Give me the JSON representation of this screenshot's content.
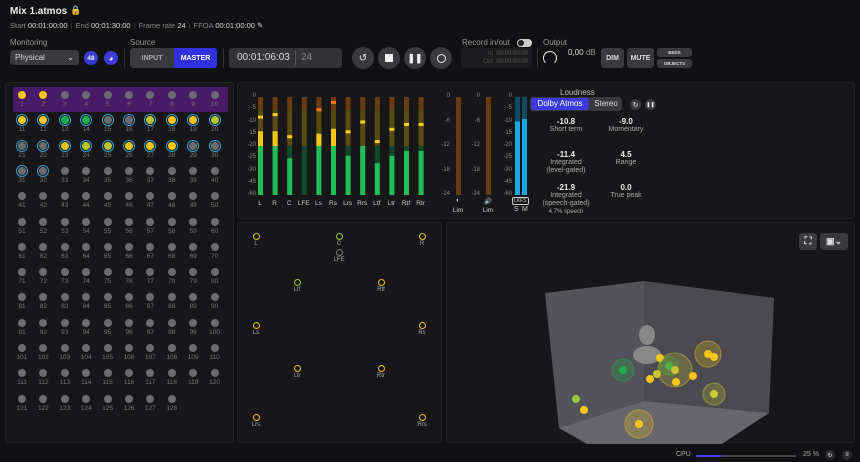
{
  "header": {
    "title": "Mix 1.atmos",
    "start_label": "Start",
    "start": "00:01:00:00",
    "end_label": "End",
    "end": "00:01:30:00",
    "frame_rate_label": "Frame rate",
    "frame_rate": "24",
    "ffoa_label": "FFOA",
    "ffoa": "00:01:00:00"
  },
  "toolbar": {
    "monitoring_label": "Monitoring",
    "monitoring_value": "Physical",
    "channels_badge": "48",
    "source_label": "Source",
    "source_input": "INPUT",
    "source_master": "MASTER",
    "source_selected": "MASTER",
    "timecode": "00:01:06:03",
    "fps": "24",
    "record_label": "Record in/out",
    "record_in_label": "In",
    "record_in": "00:00:00:00",
    "record_out_label": "Out",
    "record_out": "00:00:00:00",
    "output_label": "Output",
    "output_value": "0,00",
    "output_unit": "dB",
    "dim": "DIM",
    "mute": "MUTE",
    "beds": "BEDS",
    "objects": "OBJECTS"
  },
  "inputs": {
    "colors": {
      "yellow": "#f5c518",
      "yellowgreen": "#b8c430",
      "green": "#1fae4c",
      "gray": "#6c6c70",
      "ring": "#2aa3d4",
      "bed": "#4a1a6a"
    },
    "channels": [
      [
        "yellow",
        false
      ],
      [
        "yellow",
        false
      ],
      [
        "gray",
        false
      ],
      [
        "gray",
        false
      ],
      [
        "gray",
        false
      ],
      [
        "gray",
        false
      ],
      [
        "gray",
        false
      ],
      [
        "gray",
        false
      ],
      [
        "gray",
        false
      ],
      [
        "gray",
        false
      ],
      [
        "yellow",
        true
      ],
      [
        "yellow",
        true
      ],
      [
        "green",
        true
      ],
      [
        "green",
        true
      ],
      [
        "gray",
        true
      ],
      [
        "gray",
        true
      ],
      [
        "yellowgreen",
        true
      ],
      [
        "yellow",
        true
      ],
      [
        "yellow",
        true
      ],
      [
        "yellowgreen",
        true
      ],
      [
        "gray",
        true
      ],
      [
        "gray",
        true
      ],
      [
        "yellow",
        true
      ],
      [
        "yellowgreen",
        true
      ],
      [
        "yellowgreen",
        true
      ],
      [
        "yellow",
        true
      ],
      [
        "yellow",
        true
      ],
      [
        "yellow",
        true
      ],
      [
        "gray",
        true
      ],
      [
        "gray",
        true
      ],
      [
        "gray",
        true
      ],
      [
        "gray",
        true
      ]
    ],
    "total": 128
  },
  "meters": {
    "scale": [
      "0",
      "-5",
      "-10",
      "-15",
      "-20",
      "-25",
      "-30",
      "-45",
      "-60"
    ],
    "channels": [
      {
        "name": "L",
        "level": -14,
        "peak": -8
      },
      {
        "name": "R",
        "level": -14,
        "peak": -7
      },
      {
        "name": "C",
        "level": -25,
        "peak": -16
      },
      {
        "name": "LFE",
        "level": -60,
        "peak": null
      },
      {
        "name": "Ls",
        "level": -15,
        "peak": -5
      },
      {
        "name": "Rs",
        "level": -13,
        "peak": -2
      },
      {
        "name": "Lrs",
        "level": -24,
        "peak": -14
      },
      {
        "name": "Rrs",
        "level": -20,
        "peak": -10
      },
      {
        "name": "Ltf",
        "level": -27,
        "peak": -18
      },
      {
        "name": "Ltr",
        "level": -24,
        "peak": -13
      },
      {
        "name": "Rtf",
        "level": -22,
        "peak": -11
      },
      {
        "name": "Rtr",
        "level": -22,
        "peak": -11
      }
    ],
    "lim_scale": [
      "0",
      "-6",
      "-12",
      "-18",
      "-24"
    ],
    "lim1_label": "Lim",
    "lim2_label": "Lim",
    "lkfs_label": "LKFS",
    "lkfs_scale": [
      "0",
      "-5",
      "-10",
      "-15",
      "-20",
      "-25",
      "-30",
      "-45",
      "-60"
    ],
    "s_label": "S",
    "m_label": "M",
    "s_value": -10,
    "m_value": -9
  },
  "loudness": {
    "title": "Loudness",
    "tab_atmos": "Dolby Atmos",
    "tab_stereo": "Stereo",
    "items": [
      {
        "value": "-10.8",
        "name": "Short term"
      },
      {
        "value": "-9.0",
        "name": "Momentary"
      },
      {
        "value": "-11.4",
        "name": "Integrated\n(level-gated)"
      },
      {
        "value": "4.5",
        "name": "Range"
      },
      {
        "value": "-21.9",
        "name": "Integrated\n(speech-gated)",
        "extra": "4.7% speech"
      },
      {
        "value": "0.0",
        "name": "True peak"
      }
    ]
  },
  "speakers": [
    {
      "name": "L",
      "c": "#e8c21a"
    },
    {
      "name": "C",
      "c": "#9dc43a"
    },
    {
      "name": "LFE",
      "c": "#777"
    },
    {
      "name": "R",
      "c": "#e8c21a"
    },
    {
      "name": "Ltf",
      "c": "#9dc43a"
    },
    {
      "name": "Rtf",
      "c": "#e8c21a"
    },
    {
      "name": "Ls",
      "c": "#e8c21a"
    },
    {
      "name": "Rs",
      "c": "#e8c21a"
    },
    {
      "name": "Ltr",
      "c": "#e8c21a"
    },
    {
      "name": "Rtr",
      "c": "#e8c21a"
    },
    {
      "name": "Lrs",
      "c": "#e8c21a"
    },
    {
      "name": "Rrs",
      "c": "#e8c21a"
    }
  ],
  "status": {
    "cpu_label": "CPU",
    "cpu_value": "25 %",
    "cpu_fraction": 0.25
  }
}
